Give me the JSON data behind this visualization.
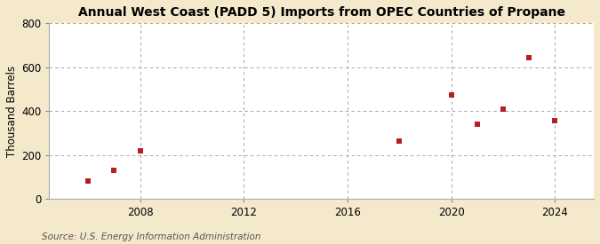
{
  "title": "Annual West Coast (PADD 5) Imports from OPEC Countries of Propane",
  "ylabel": "Thousand Barrels",
  "source": "Source: U.S. Energy Information Administration",
  "background_color": "#f5e9cc",
  "plot_background_color": "#ffffff",
  "marker_color": "#b22222",
  "marker": "s",
  "marker_size": 4,
  "grid_color": "#999999",
  "grid_style": "--",
  "years": [
    2006,
    2007,
    2008,
    2018,
    2020,
    2021,
    2022,
    2023,
    2024
  ],
  "values": [
    80,
    130,
    220,
    265,
    475,
    340,
    410,
    645,
    355
  ],
  "xlim": [
    2004.5,
    2025.5
  ],
  "ylim": [
    0,
    800
  ],
  "xticks": [
    2008,
    2012,
    2016,
    2020,
    2024
  ],
  "yticks": [
    0,
    200,
    400,
    600,
    800
  ],
  "title_fontsize": 10,
  "label_fontsize": 8.5,
  "tick_fontsize": 8.5,
  "source_fontsize": 7.5
}
